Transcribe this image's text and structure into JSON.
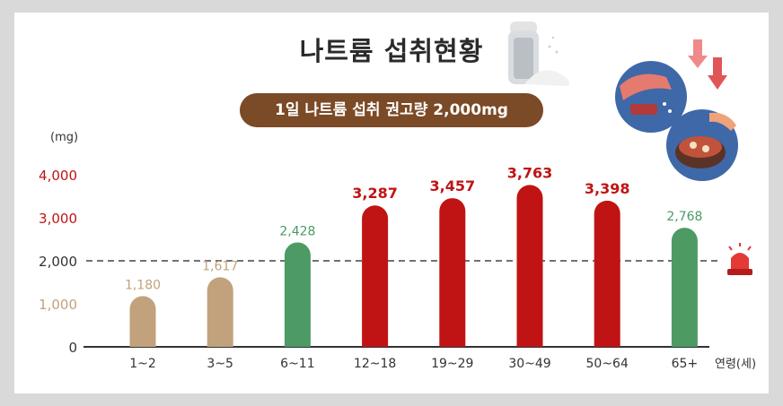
{
  "infographic": {
    "title": "나트륨 섭취현황",
    "recommendation": "1일 나트륨 섭취 권고량 2,000mg",
    "unit_label": "(mg)",
    "x_unit_label": "연령(세)"
  },
  "colors": {
    "tan": "#c2a27c",
    "green": "#4d9a64",
    "red": "#c01414",
    "pill": "#7b4a26"
  },
  "icons": [
    "salt-shaker-icon",
    "cooking-illustration-icon",
    "down-arrows-icon",
    "siren-icon"
  ],
  "chart_data": {
    "type": "bar",
    "categories": [
      "1~2",
      "3~5",
      "6~11",
      "12~18",
      "19~29",
      "30~49",
      "50~64",
      "65+"
    ],
    "values": [
      1180,
      1617,
      2428,
      3287,
      3457,
      3763,
      3398,
      2768
    ],
    "value_labels": [
      "1,180",
      "1,617",
      "2,428",
      "3,287",
      "3,457",
      "3,763",
      "3,398",
      "2,768"
    ],
    "bar_colors": [
      "tan",
      "tan",
      "green",
      "red",
      "red",
      "red",
      "red",
      "green"
    ],
    "yticks": [
      0,
      1000,
      2000,
      3000,
      4000
    ],
    "ytick_labels": [
      "0",
      "1,000",
      "2,000",
      "3,000",
      "4,000"
    ],
    "ytick_colors": [
      "dark",
      "tan",
      "dark",
      "red",
      "red"
    ],
    "reference_line": 2000,
    "ylim": [
      0,
      4000
    ],
    "xlabel": "연령(세)",
    "ylabel": "(mg)"
  }
}
